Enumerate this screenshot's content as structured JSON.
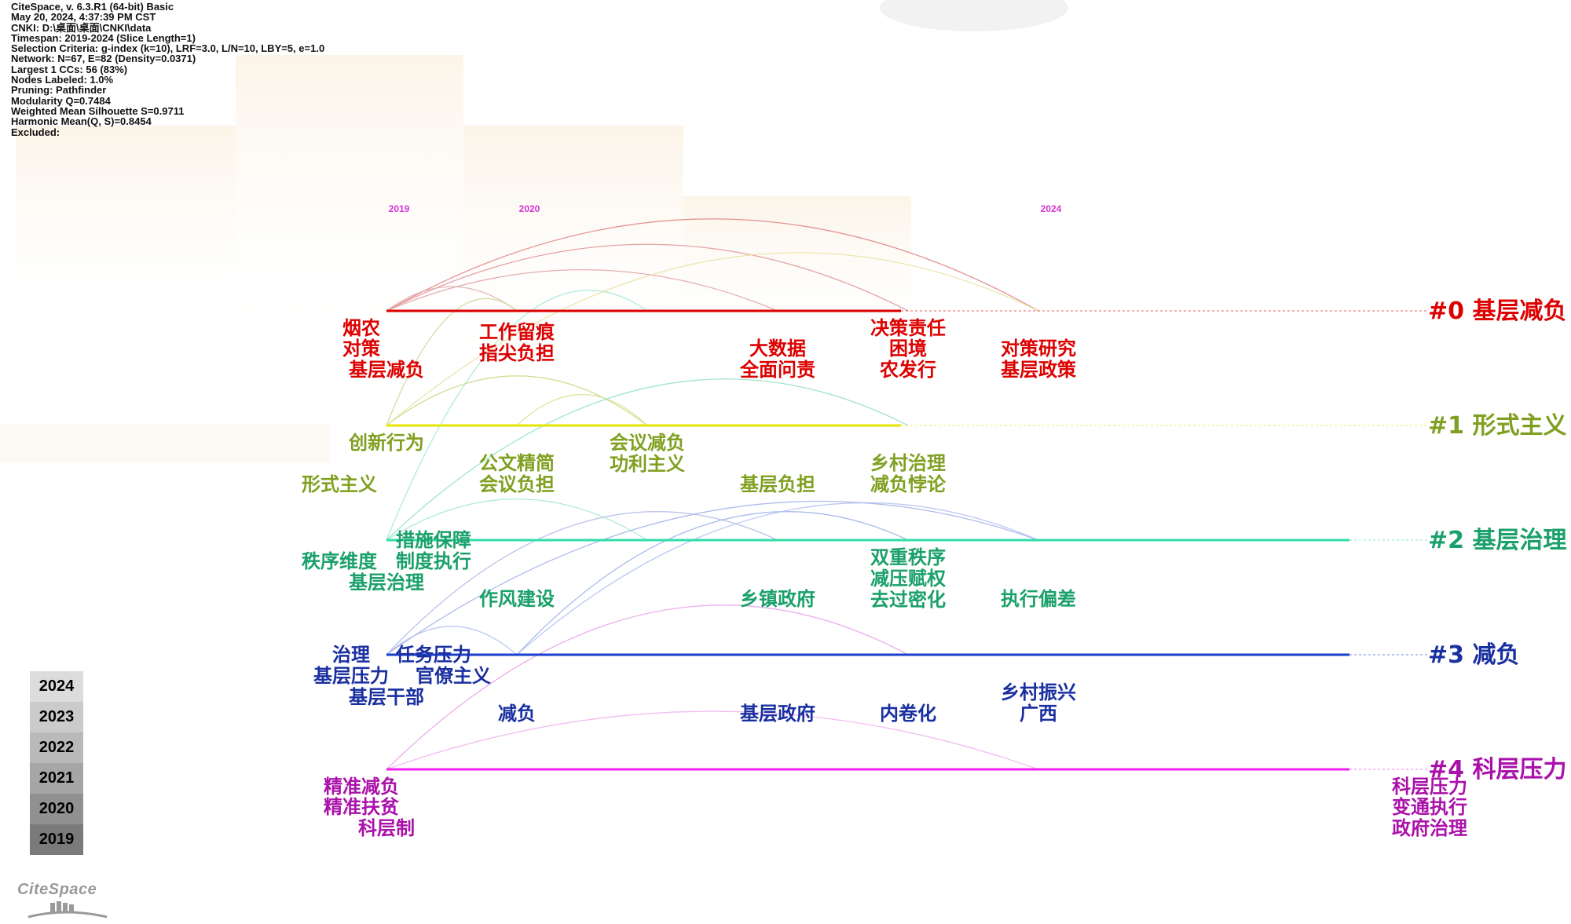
{
  "info_lines": [
    "CiteSpace, v. 6.3.R1 (64-bit) Basic",
    "May 20, 2024, 4:37:39 PM CST",
    "CNKI: D:\\桌面\\桌面\\CNKI\\data",
    "Timespan: 2019-2024 (Slice Length=1)",
    "Selection Criteria: g-index (k=10), LRF=3.0, L/N=10, LBY=5, e=1.0",
    "Network: N=67, E=82 (Density=0.0371)",
    "Largest 1 CCs: 56 (83%)",
    "Nodes Labeled: 1.0%",
    "Pruning: Pathfinder",
    "Modularity Q=0.7484",
    "Weighted Mean Silhouette S=0.9711",
    "Harmonic Mean(Q, S)=0.8454",
    "Excluded:"
  ],
  "legend_years": [
    "2024",
    "2023",
    "2022",
    "2021",
    "2020",
    "2019"
  ],
  "legend_colors": [
    "#dcdcdc",
    "#cbcbcb",
    "#b9b9b9",
    "#a6a6a6",
    "#919191",
    "#7a7a7a"
  ],
  "logo_text": "CiteSpace",
  "chart_data": {
    "type": "timeline",
    "x_years": [
      2019,
      2020,
      2021,
      2022,
      2023,
      2024
    ],
    "x_labeled_years": [
      "2019",
      "2020",
      "2024"
    ],
    "clusters": [
      {
        "id": "#0",
        "label": "#0 基层减负",
        "color": "#dd0000",
        "year_range": [
          2019,
          2023
        ],
        "groups": [
          {
            "year": 2019,
            "terms": [
              "烟农",
              "对策",
              "基层减负"
            ]
          },
          {
            "year": 2020,
            "terms": [
              "工作留痕",
              "指尖负担"
            ]
          },
          {
            "year": 2022,
            "terms": [
              "大数据",
              "全面问责"
            ]
          },
          {
            "year": 2023,
            "terms": [
              "决策责任",
              "困境",
              "农发行"
            ]
          },
          {
            "year": 2024,
            "terms": [
              "对策研究",
              "基层政策"
            ]
          }
        ]
      },
      {
        "id": "#1",
        "label": "#1 形式主义",
        "color": "#e6e600",
        "text_color": "#7fa020",
        "year_range": [
          2019,
          2023
        ],
        "groups": [
          {
            "year": 2019,
            "terms": [
              "创新行为",
              "形式主义"
            ]
          },
          {
            "year": 2020,
            "terms": [
              "公文精简",
              "会议负担"
            ]
          },
          {
            "year": 2021,
            "terms": [
              "会议减负",
              "功利主义"
            ]
          },
          {
            "year": 2022,
            "terms": [
              "基层负担"
            ]
          },
          {
            "year": 2023,
            "terms": [
              "乡村治理",
              "减负悖论"
            ]
          }
        ]
      },
      {
        "id": "#2",
        "label": "#2 基层治理",
        "color": "#33ddaa",
        "text_color": "#1aa06a",
        "year_range": [
          2019,
          2024
        ],
        "groups": [
          {
            "year": 2019,
            "terms": [
              "措施保障",
              "秩序维度",
              "制度执行",
              "基层治理"
            ]
          },
          {
            "year": 2020,
            "terms": [
              "作风建设"
            ]
          },
          {
            "year": 2022,
            "terms": [
              "乡镇政府"
            ]
          },
          {
            "year": 2023,
            "terms": [
              "双重秩序",
              "减压赋权",
              "去过密化"
            ]
          },
          {
            "year": 2024,
            "terms": [
              "执行偏差"
            ]
          }
        ]
      },
      {
        "id": "#3",
        "label": "#3 减负",
        "color": "#1a3fcc",
        "text_color": "#1a2fa0",
        "year_range": [
          2019,
          2024
        ],
        "groups": [
          {
            "year": 2019,
            "terms": [
              "治理",
              "任务压力",
              "基层压力",
              "官僚主义",
              "基层干部"
            ]
          },
          {
            "year": 2020,
            "terms": [
              "减负"
            ]
          },
          {
            "year": 2022,
            "terms": [
              "基层政府"
            ]
          },
          {
            "year": 2023,
            "terms": [
              "内卷化"
            ]
          },
          {
            "year": 2024,
            "terms": [
              "乡村振兴",
              "广西"
            ]
          }
        ]
      },
      {
        "id": "#4",
        "label": "#4 科层压力",
        "color": "#ee22ee",
        "text_color": "#aa10aa",
        "year_range": [
          2019,
          2024
        ],
        "groups": [
          {
            "year": 2019,
            "terms": [
              "精准减负",
              "精准扶贫",
              "科层制"
            ]
          },
          {
            "year": 2024,
            "terms": [
              "科层压力",
              "变通执行",
              "政府治理"
            ]
          }
        ]
      }
    ]
  }
}
